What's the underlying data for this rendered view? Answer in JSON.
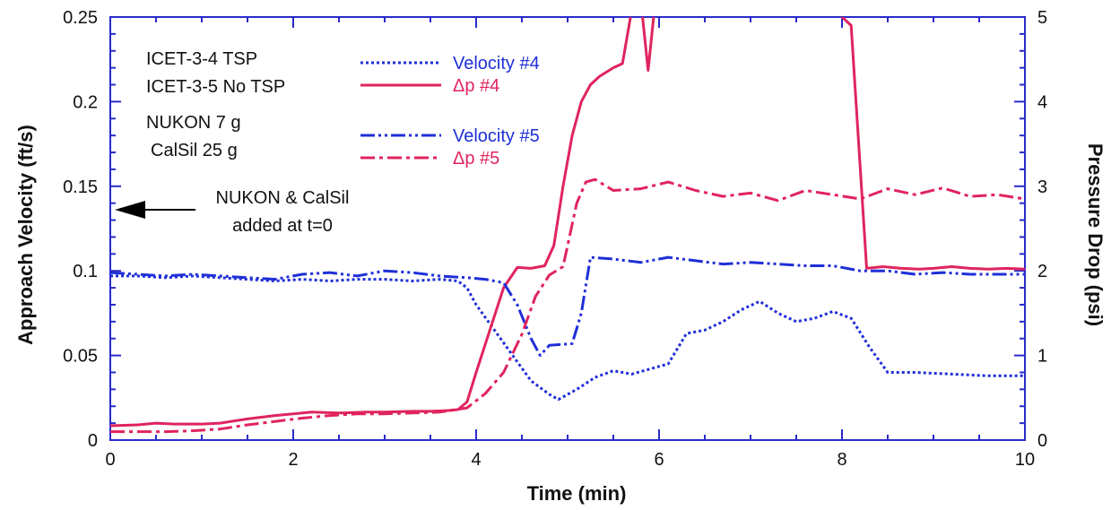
{
  "chart_data": {
    "type": "line",
    "title": "",
    "xlabel": "Time (min)",
    "ylabel": "Approach Velocity (ft/s)",
    "y2label": "Pressure Drop (psi)",
    "xlim": [
      0,
      10
    ],
    "ylim": [
      0,
      0.25
    ],
    "y2lim": [
      0,
      5
    ],
    "x_ticks": [
      "0",
      "2",
      "4",
      "6",
      "8",
      "10"
    ],
    "y_ticks": [
      "0",
      "0.05",
      "0.1",
      "0.15",
      "0.2",
      "0.25"
    ],
    "y2_ticks": [
      "0",
      "1",
      "2",
      "3",
      "4",
      "5"
    ],
    "grid": false,
    "legend_position": "top-center",
    "notes": [
      "ICET-3-4 TSP",
      "ICET-3-5 No TSP",
      "NUKON 7 g",
      "CalSil 25 g"
    ],
    "annotation": {
      "line1": "NUKON & CalSil",
      "line2": "added at t=0",
      "target_y": 0.137
    },
    "colors": {
      "velocity": "#1f2fd8",
      "pressure": "#e0245e",
      "frame": "#2a2acb"
    },
    "series": [
      {
        "name": "Velocity #4",
        "axis": "left",
        "style": "dotted",
        "color": "#1f2fd8",
        "points": [
          [
            0,
            0.097
          ],
          [
            0.3,
            0.097
          ],
          [
            0.6,
            0.096
          ],
          [
            0.9,
            0.097
          ],
          [
            1.2,
            0.096
          ],
          [
            1.5,
            0.095
          ],
          [
            1.8,
            0.094
          ],
          [
            2.1,
            0.095
          ],
          [
            2.4,
            0.094
          ],
          [
            2.7,
            0.095
          ],
          [
            3.0,
            0.095
          ],
          [
            3.3,
            0.094
          ],
          [
            3.6,
            0.095
          ],
          [
            3.8,
            0.094
          ],
          [
            3.9,
            0.09
          ],
          [
            4.0,
            0.08
          ],
          [
            4.2,
            0.065
          ],
          [
            4.4,
            0.05
          ],
          [
            4.6,
            0.035
          ],
          [
            4.8,
            0.027
          ],
          [
            4.9,
            0.024
          ],
          [
            5.1,
            0.03
          ],
          [
            5.3,
            0.037
          ],
          [
            5.5,
            0.041
          ],
          [
            5.7,
            0.039
          ],
          [
            5.9,
            0.042
          ],
          [
            6.1,
            0.045
          ],
          [
            6.3,
            0.063
          ],
          [
            6.5,
            0.065
          ],
          [
            6.7,
            0.07
          ],
          [
            6.9,
            0.077
          ],
          [
            7.1,
            0.082
          ],
          [
            7.3,
            0.075
          ],
          [
            7.5,
            0.07
          ],
          [
            7.7,
            0.072
          ],
          [
            7.9,
            0.076
          ],
          [
            8.1,
            0.072
          ],
          [
            8.3,
            0.055
          ],
          [
            8.5,
            0.04
          ],
          [
            8.8,
            0.04
          ],
          [
            9.2,
            0.039
          ],
          [
            9.6,
            0.038
          ],
          [
            10,
            0.038
          ]
        ]
      },
      {
        "name": "Δp #4",
        "axis": "right",
        "style": "solid",
        "color": "#e0245e",
        "points": [
          [
            0,
            0.17
          ],
          [
            0.3,
            0.18
          ],
          [
            0.5,
            0.2
          ],
          [
            0.7,
            0.19
          ],
          [
            1.0,
            0.19
          ],
          [
            1.2,
            0.2
          ],
          [
            1.5,
            0.25
          ],
          [
            1.8,
            0.29
          ],
          [
            2.0,
            0.31
          ],
          [
            2.2,
            0.33
          ],
          [
            2.5,
            0.32
          ],
          [
            2.8,
            0.33
          ],
          [
            3.0,
            0.33
          ],
          [
            3.3,
            0.34
          ],
          [
            3.5,
            0.34
          ],
          [
            3.7,
            0.35
          ],
          [
            3.8,
            0.36
          ],
          [
            3.9,
            0.45
          ],
          [
            4.0,
            0.8
          ],
          [
            4.15,
            1.3
          ],
          [
            4.3,
            1.8
          ],
          [
            4.45,
            2.04
          ],
          [
            4.6,
            2.03
          ],
          [
            4.75,
            2.06
          ],
          [
            4.85,
            2.3
          ],
          [
            4.95,
            3.0
          ],
          [
            5.05,
            3.6
          ],
          [
            5.15,
            4.0
          ],
          [
            5.25,
            4.2
          ],
          [
            5.35,
            4.3
          ],
          [
            5.5,
            4.4
          ],
          [
            5.6,
            4.45
          ],
          [
            5.72,
            5.2
          ]
        ]
      },
      {
        "name": "Δp #4",
        "axis": "right",
        "style": "solid",
        "color": "#e0245e",
        "points": [
          [
            5.8,
            5.2
          ],
          [
            5.88,
            4.37
          ],
          [
            5.96,
            5.2
          ]
        ]
      },
      {
        "name": "Δp #4",
        "axis": "right",
        "style": "solid",
        "color": "#e0245e",
        "points": [
          [
            7.93,
            5.2
          ],
          [
            8.0,
            5.0
          ],
          [
            8.1,
            4.9
          ],
          [
            8.27,
            2.03
          ],
          [
            8.45,
            2.05
          ],
          [
            8.65,
            2.03
          ],
          [
            8.85,
            2.02
          ],
          [
            9.0,
            2.03
          ],
          [
            9.2,
            2.05
          ],
          [
            9.4,
            2.03
          ],
          [
            9.6,
            2.02
          ],
          [
            9.8,
            2.03
          ],
          [
            10,
            2.02
          ]
        ]
      },
      {
        "name": "Velocity #5",
        "axis": "left",
        "style": "dashdotdot",
        "color": "#1f2fd8",
        "points": [
          [
            0,
            0.099
          ],
          [
            0.3,
            0.098
          ],
          [
            0.6,
            0.097
          ],
          [
            0.9,
            0.098
          ],
          [
            1.2,
            0.097
          ],
          [
            1.5,
            0.096
          ],
          [
            1.8,
            0.095
          ],
          [
            2.1,
            0.098
          ],
          [
            2.4,
            0.099
          ],
          [
            2.7,
            0.097
          ],
          [
            3.0,
            0.1
          ],
          [
            3.3,
            0.099
          ],
          [
            3.6,
            0.097
          ],
          [
            3.9,
            0.096
          ],
          [
            4.1,
            0.095
          ],
          [
            4.3,
            0.093
          ],
          [
            4.45,
            0.08
          ],
          [
            4.6,
            0.06
          ],
          [
            4.7,
            0.05
          ],
          [
            4.8,
            0.056
          ],
          [
            5.05,
            0.057
          ],
          [
            5.15,
            0.075
          ],
          [
            5.25,
            0.108
          ],
          [
            5.5,
            0.107
          ],
          [
            5.8,
            0.105
          ],
          [
            6.1,
            0.108
          ],
          [
            6.4,
            0.106
          ],
          [
            6.7,
            0.104
          ],
          [
            7.0,
            0.105
          ],
          [
            7.3,
            0.104
          ],
          [
            7.6,
            0.103
          ],
          [
            7.9,
            0.103
          ],
          [
            8.2,
            0.1
          ],
          [
            8.5,
            0.1
          ],
          [
            8.8,
            0.098
          ],
          [
            9.1,
            0.099
          ],
          [
            9.4,
            0.098
          ],
          [
            9.7,
            0.098
          ],
          [
            10,
            0.098
          ]
        ]
      },
      {
        "name": "Δp #5",
        "axis": "right",
        "style": "dashdot",
        "color": "#e0245e",
        "points": [
          [
            0,
            0.1
          ],
          [
            0.3,
            0.1
          ],
          [
            0.6,
            0.1
          ],
          [
            0.9,
            0.11
          ],
          [
            1.2,
            0.13
          ],
          [
            1.5,
            0.18
          ],
          [
            1.8,
            0.22
          ],
          [
            2.1,
            0.26
          ],
          [
            2.4,
            0.29
          ],
          [
            2.7,
            0.31
          ],
          [
            3.0,
            0.31
          ],
          [
            3.3,
            0.32
          ],
          [
            3.6,
            0.33
          ],
          [
            3.9,
            0.38
          ],
          [
            4.1,
            0.55
          ],
          [
            4.3,
            0.8
          ],
          [
            4.5,
            1.25
          ],
          [
            4.65,
            1.7
          ],
          [
            4.8,
            1.95
          ],
          [
            4.95,
            2.05
          ],
          [
            5.0,
            2.3
          ],
          [
            5.1,
            2.8
          ],
          [
            5.2,
            3.05
          ],
          [
            5.3,
            3.08
          ],
          [
            5.5,
            2.95
          ],
          [
            5.8,
            2.97
          ],
          [
            6.1,
            3.05
          ],
          [
            6.4,
            2.95
          ],
          [
            6.7,
            2.88
          ],
          [
            7.0,
            2.92
          ],
          [
            7.3,
            2.83
          ],
          [
            7.6,
            2.95
          ],
          [
            7.9,
            2.9
          ],
          [
            8.2,
            2.85
          ],
          [
            8.5,
            2.97
          ],
          [
            8.8,
            2.9
          ],
          [
            9.1,
            2.98
          ],
          [
            9.4,
            2.88
          ],
          [
            9.7,
            2.9
          ],
          [
            10,
            2.85
          ]
        ]
      }
    ]
  }
}
